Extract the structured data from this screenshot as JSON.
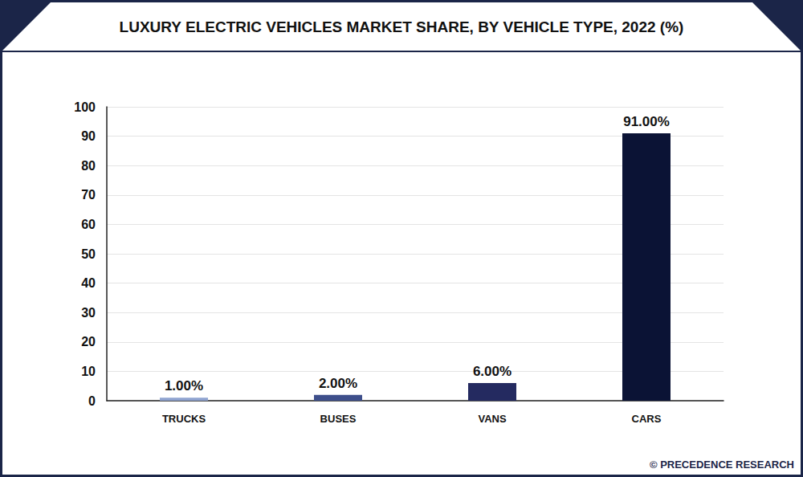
{
  "chart_data": {
    "type": "bar",
    "title": "LUXURY ELECTRIC VEHICLES MARKET SHARE, BY VEHICLE TYPE, 2022 (%)",
    "source": "© PRECEDENCE RESEARCH",
    "categories": [
      "TRUCKS",
      "BUSES",
      "VANS",
      "CARS"
    ],
    "values": [
      1,
      2,
      6,
      91
    ],
    "value_labels": [
      "1.00%",
      "2.00%",
      "6.00%",
      "91.00%"
    ],
    "colors": [
      "#8fa3d0",
      "#3e4f8b",
      "#242a60",
      "#0b1335"
    ],
    "ylim": [
      0,
      100
    ],
    "yticks": [
      0,
      10,
      20,
      30,
      40,
      50,
      60,
      70,
      80,
      90,
      100
    ],
    "grid": true,
    "data_labels": true
  }
}
